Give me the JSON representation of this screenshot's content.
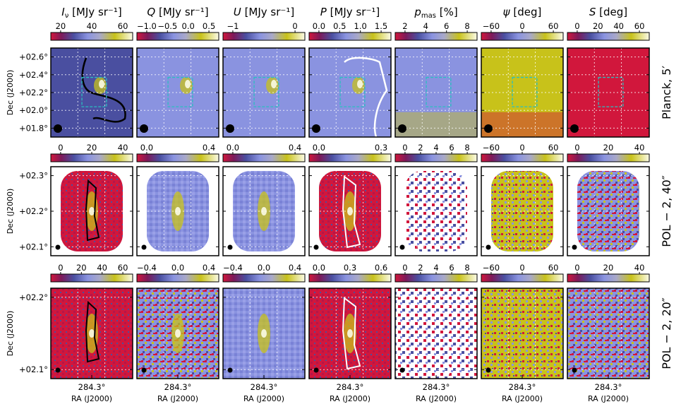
{
  "quantities": [
    {
      "symbol": "I",
      "sub": "ν",
      "unit": "[MJy sr⁻¹]"
    },
    {
      "symbol": "Q",
      "sub": "",
      "unit": "[MJy sr⁻¹]"
    },
    {
      "symbol": "U",
      "sub": "",
      "unit": "[MJy sr⁻¹]"
    },
    {
      "symbol": "P",
      "sub": "",
      "unit": "[MJy sr⁻¹]"
    },
    {
      "symbol": "p",
      "sub": "mas",
      "unit": "[%]"
    },
    {
      "symbol": "ψ",
      "sub": "",
      "unit": "[deg]"
    },
    {
      "symbol": "S",
      "sub": "",
      "unit": "[deg]"
    }
  ],
  "rows": [
    {
      "label": "Planck, 5′",
      "ylabel": "Dec (J2000)",
      "yticks": [
        "+02.6°",
        "+02.4°",
        "+02.2°",
        "+02.0°",
        "+01.8°"
      ],
      "colorbar_ticks": [
        [
          "20",
          "40",
          "60"
        ],
        [
          "−1.0",
          "−0.5",
          "0.0",
          "0.5"
        ],
        [
          "−1",
          "0"
        ],
        [
          "0.0",
          "0.5",
          "1.0",
          "1.5"
        ],
        [
          "2",
          "4",
          "6",
          "8"
        ],
        [
          "−60",
          "0",
          "60"
        ],
        [
          "0",
          "20",
          "40",
          "60"
        ]
      ]
    },
    {
      "label": "POL − 2, 40″",
      "ylabel": "Dec (J2000)",
      "yticks": [
        "+02.3°",
        "+02.2°",
        "+02.1°"
      ],
      "colorbar_ticks": [
        [
          "0",
          "20",
          "40"
        ],
        [
          "0.0",
          "0.4"
        ],
        [
          "0.0",
          "0.4"
        ],
        [
          "0.0",
          "0.3"
        ],
        [
          "0",
          "2",
          "4",
          "6",
          "8"
        ],
        [
          "−60",
          "0",
          "60"
        ],
        [
          "0",
          "20",
          "40"
        ]
      ]
    },
    {
      "label": "POL − 2, 20″",
      "ylabel": "Dec (J2000)",
      "yticks": [
        "+02.2°",
        "+02.1°"
      ],
      "colorbar_ticks": [
        [
          "0",
          "20",
          "40",
          "60"
        ],
        [
          "−0.4",
          "0.0",
          "0.4"
        ],
        [
          "−0.4",
          "0.0",
          "0.4"
        ],
        [
          "0.0",
          "0.3",
          "0.6"
        ],
        [
          "0",
          "2",
          "4",
          "6",
          "8"
        ],
        [
          "−60",
          "0",
          "60"
        ],
        [
          "0",
          "20",
          "40"
        ]
      ]
    }
  ],
  "xtick": "284.3°",
  "xlabel": "RA (J2000)",
  "colors": {
    "low": "#d1173c",
    "mid": "#8a93e0",
    "high_yellow": "#c8c21a",
    "peak": "#fbfbe6",
    "contour_black": "#000000",
    "contour_white": "#ffffff",
    "box_cyan": "#2bbfc0",
    "grid": "#ffffff"
  }
}
